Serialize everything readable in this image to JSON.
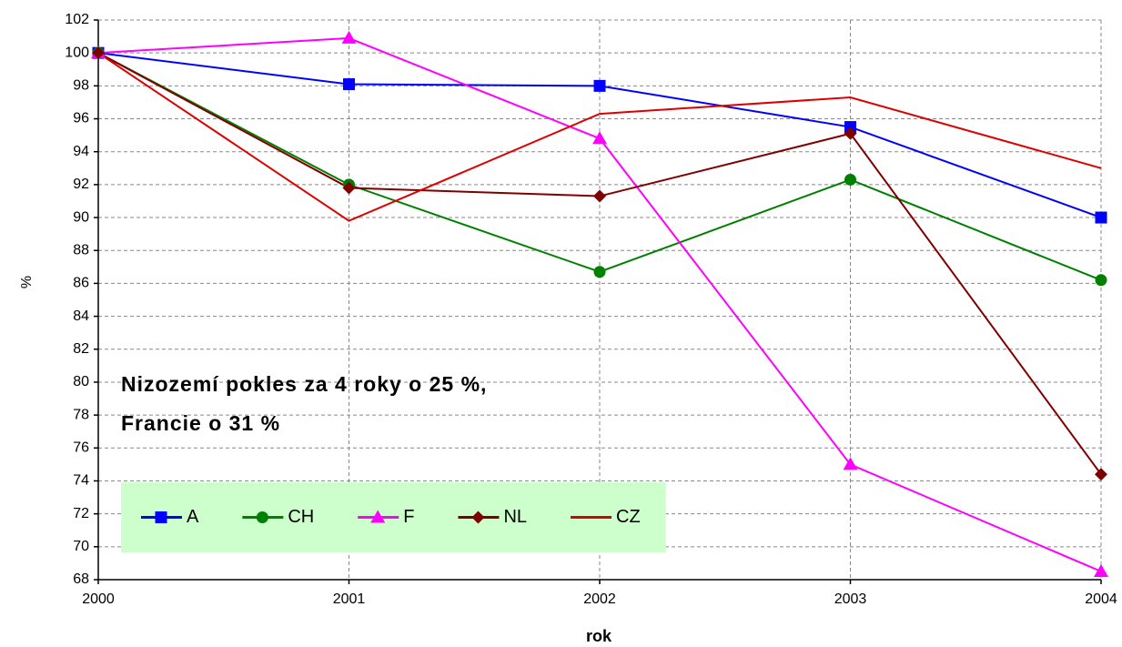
{
  "chart_data": {
    "type": "line",
    "x_label": "rok",
    "y_label": "%",
    "x": [
      2000,
      2001,
      2002,
      2003,
      2004
    ],
    "xlim": [
      2000,
      2004
    ],
    "xticks": [
      2000,
      2001,
      2002,
      2003,
      2004
    ],
    "ylim": [
      68,
      102
    ],
    "yticks": [
      68,
      70,
      72,
      74,
      76,
      78,
      80,
      82,
      84,
      86,
      88,
      90,
      92,
      94,
      96,
      98,
      100,
      102
    ],
    "grid": true,
    "legend_position": "lower left",
    "legend_background": "#ccffcc",
    "annotations": [
      "Nizozemí pokles za 4 roky o 25 %,",
      "Francie o 31 %"
    ],
    "series": [
      {
        "name": "A",
        "color": "#0000ff",
        "marker": "square",
        "values": [
          100,
          98.1,
          98.0,
          95.5,
          90.0
        ]
      },
      {
        "name": "CH",
        "color": "#008000",
        "marker": "circle",
        "values": [
          100,
          92.0,
          86.7,
          92.3,
          86.2
        ]
      },
      {
        "name": "F",
        "color": "#ff00ff",
        "marker": "triangle",
        "values": [
          100,
          100.9,
          94.8,
          75.0,
          68.5
        ]
      },
      {
        "name": "NL",
        "color": "#800000",
        "marker": "diamond",
        "values": [
          100,
          91.8,
          91.3,
          95.1,
          74.4
        ]
      },
      {
        "name": "CZ",
        "color": "#dd0000",
        "values": [
          100,
          89.8,
          96.3,
          97.3,
          93.0
        ]
      }
    ]
  }
}
